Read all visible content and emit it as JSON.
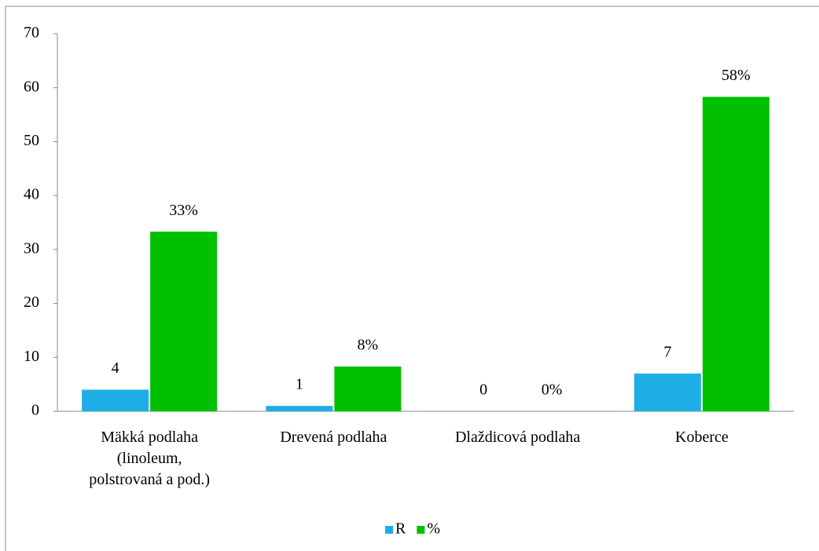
{
  "chart_data": {
    "type": "bar",
    "categories": [
      "Mäkká podlaha (linoleum, polstrovaná a pod.)",
      "Drevená podlaha",
      "Dlaždicová podlaha",
      "Koberce"
    ],
    "series": [
      {
        "name": "R",
        "color": "#1eaee6",
        "values": [
          4,
          1,
          0,
          7
        ]
      },
      {
        "name": "%",
        "color": "#00c000",
        "values": [
          33.3,
          8.3,
          0,
          58.3
        ],
        "value_labels": [
          "33%",
          "8%",
          "0%",
          "58%"
        ]
      }
    ],
    "ylim": [
      0,
      70
    ],
    "yticks": [
      0,
      10,
      20,
      30,
      40,
      50,
      60,
      70
    ],
    "grid": false,
    "legend": "bottom"
  }
}
